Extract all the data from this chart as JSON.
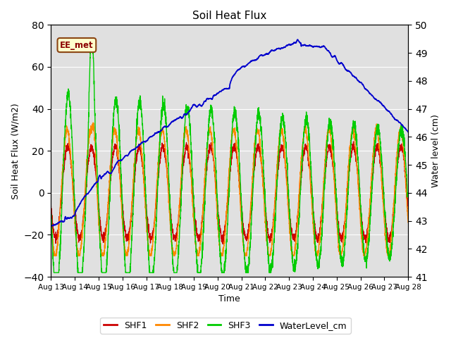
{
  "title": "Soil Heat Flux",
  "xlabel": "Time",
  "ylabel_left": "Soil Heat Flux (W/m2)",
  "ylabel_right": "Water level (cm)",
  "ylim_left": [
    -40,
    80
  ],
  "ylim_right": [
    41.0,
    50.0
  ],
  "yticks_left": [
    -40,
    -20,
    0,
    20,
    40,
    60,
    80
  ],
  "yticks_right": [
    41.0,
    42.0,
    43.0,
    44.0,
    45.0,
    46.0,
    47.0,
    48.0,
    49.0,
    50.0
  ],
  "xtick_labels": [
    "Aug 13",
    "Aug 14",
    "Aug 15",
    "Aug 16",
    "Aug 17",
    "Aug 18",
    "Aug 19",
    "Aug 20",
    "Aug 21",
    "Aug 22",
    "Aug 23",
    "Aug 24",
    "Aug 25",
    "Aug 26",
    "Aug 27",
    "Aug 28"
  ],
  "colors": {
    "SHF1": "#cc0000",
    "SHF2": "#ff8800",
    "SHF3": "#00cc00",
    "WaterLevel": "#0000cc"
  },
  "legend_label": "EE_met",
  "background_color": "#e0e0e0",
  "grid_color": "#ffffff",
  "fig_bg": "#ffffff"
}
